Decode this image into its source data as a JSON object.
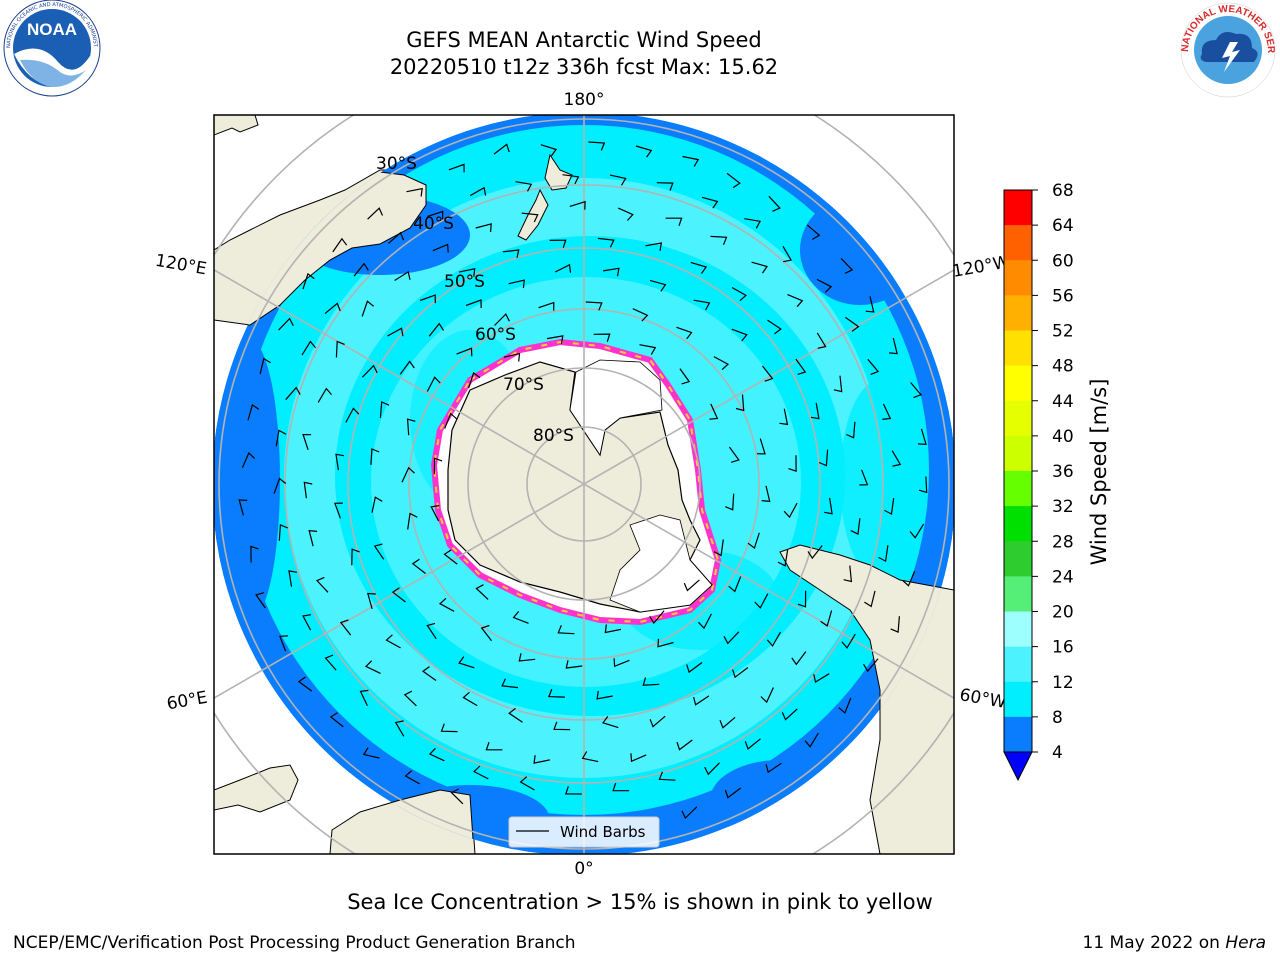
{
  "title": {
    "line1": "GEFS MEAN Antarctic Wind Speed",
    "line2": "20220510 t12z 336h fcst   Max: 15.62"
  },
  "logos": {
    "left": {
      "name": "noaa-logo",
      "text": "NOAA",
      "ring_text": "NATIONAL OCEANIC AND ATMOSPHERIC ADMINISTRATION · U.S. DEPARTMENT OF COMMERCE"
    },
    "right": {
      "name": "nws-logo",
      "ring_text": "NATIONAL WEATHER SERVICE"
    }
  },
  "map": {
    "projection": "south-polar-stereographic",
    "longitude_labels": {
      "top": "180°",
      "bottom": "0°",
      "upper_left": "120°E",
      "upper_right": "120°W",
      "lower_left": "60°E",
      "lower_right": "60°W"
    },
    "latitude_labels": [
      "30°S",
      "40°S",
      "50°S",
      "60°S",
      "70°S",
      "80°S"
    ],
    "legend_label": "Wind Barbs",
    "colors": {
      "land": "#eeecdb",
      "sea_ice_pink": "#ff33cc",
      "sea_ice_yellow": "#ffcc33",
      "ocean_deep_blue": "#0a7dff",
      "ocean_cyan": "#00eeff",
      "ocean_light_cyan": "#4df2ff",
      "grid": "#b3b3b3"
    }
  },
  "colorbar": {
    "label": "Wind Speed [m/s]",
    "ticks": [
      "4",
      "8",
      "12",
      "16",
      "20",
      "24",
      "28",
      "32",
      "36",
      "40",
      "44",
      "48",
      "52",
      "56",
      "60",
      "64",
      "68"
    ],
    "colors": [
      "#0a7dff",
      "#00eeff",
      "#4df2ff",
      "#9effff",
      "#55ee77",
      "#2ecc2e",
      "#00e000",
      "#66ff00",
      "#ccff00",
      "#e6ff00",
      "#ffff00",
      "#ffe000",
      "#ffb000",
      "#ff8c00",
      "#ff6000",
      "#ff3000"
    ],
    "under_color": "#0000ff",
    "top_color": "#ff0000"
  },
  "caption": "Sea Ice Concentration > 15% is shown in pink to yellow",
  "footer": {
    "left": "NCEP/EMC/Verification Post Processing Product Generation Branch",
    "right_date": "11 May 2022 on ",
    "right_machine": "Hera"
  }
}
